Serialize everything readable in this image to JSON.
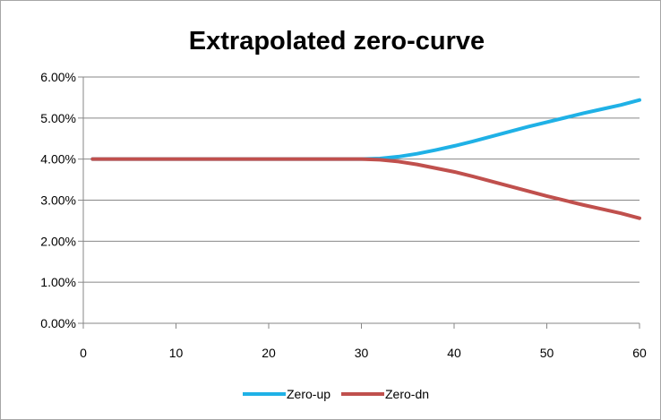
{
  "chart_data": {
    "type": "line",
    "title": "Extrapolated zero-curve",
    "xlabel": "",
    "ylabel": "",
    "x": [
      1,
      5,
      10,
      15,
      20,
      25,
      30,
      32,
      34,
      36,
      38,
      40,
      42,
      44,
      46,
      48,
      50,
      52,
      54,
      56,
      58,
      60
    ],
    "series": [
      {
        "name": "Zero-up",
        "color": "#1fb1e6",
        "values": [
          0.04,
          0.04,
          0.04,
          0.04,
          0.04,
          0.04,
          0.04,
          0.04015,
          0.0406,
          0.0413,
          0.0422,
          0.0432,
          0.0443,
          0.0455,
          0.0467,
          0.0479,
          0.049,
          0.0501,
          0.0512,
          0.0522,
          0.0532,
          0.0544
        ]
      },
      {
        "name": "Zero-dn",
        "color": "#c0504d",
        "values": [
          0.04,
          0.04,
          0.04,
          0.04,
          0.04,
          0.04,
          0.04,
          0.03985,
          0.0394,
          0.0387,
          0.0378,
          0.0369,
          0.0358,
          0.0346,
          0.0334,
          0.0322,
          0.031,
          0.0299,
          0.0288,
          0.0278,
          0.0268,
          0.0256
        ]
      }
    ],
    "xlim": [
      0,
      60
    ],
    "ylim": [
      0,
      0.06
    ],
    "x_ticks": [
      "0",
      "10",
      "20",
      "30",
      "40",
      "50",
      "60"
    ],
    "y_ticks": [
      "0.00%",
      "1.00%",
      "2.00%",
      "3.00%",
      "4.00%",
      "5.00%",
      "6.00%"
    ],
    "grid": true,
    "legend_position": "bottom"
  }
}
